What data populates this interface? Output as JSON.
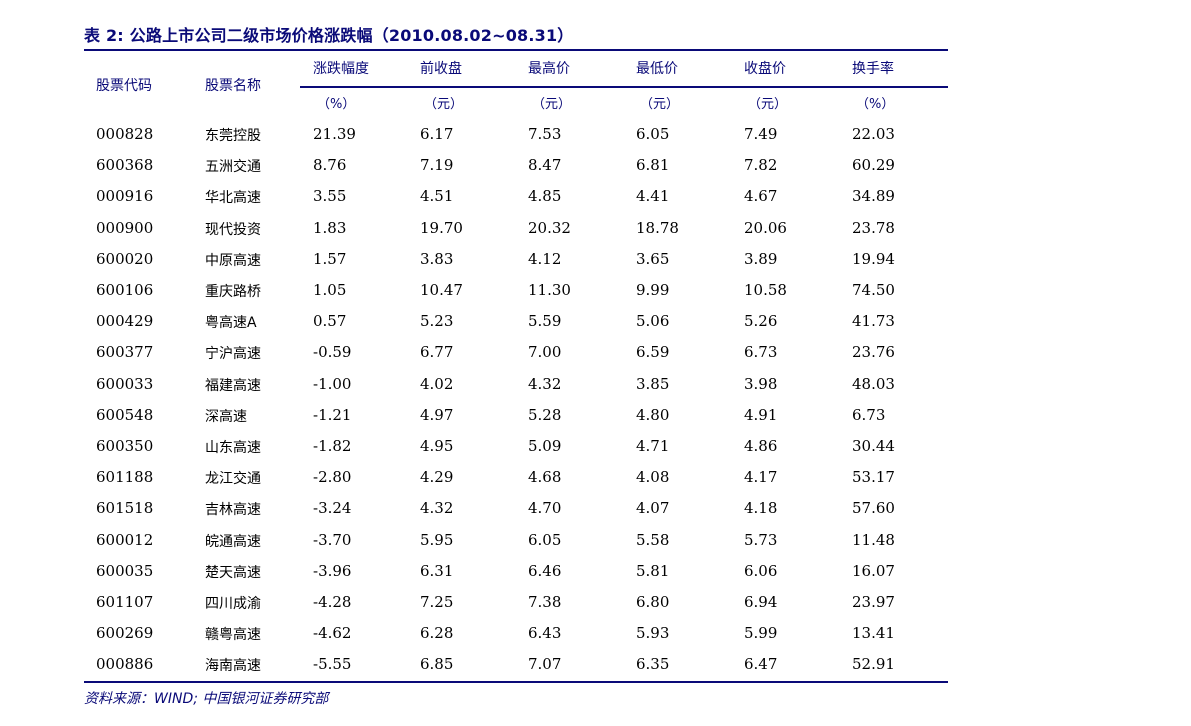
{
  "title": "表 2:  公路上市公司二级市场价格涨跌幅（2010.08.02~08.31）",
  "columns": [
    {
      "header": "股票代码",
      "unit": ""
    },
    {
      "header": "股票名称",
      "unit": ""
    },
    {
      "header": "涨跌幅度",
      "unit": "（%）"
    },
    {
      "header": "前收盘",
      "unit": "（元）"
    },
    {
      "header": "最高价",
      "unit": "（元）"
    },
    {
      "header": "最低价",
      "unit": "（元）"
    },
    {
      "header": "收盘价",
      "unit": "（元）"
    },
    {
      "header": "换手率",
      "unit": "（%）"
    }
  ],
  "rows": [
    [
      "000828",
      "东莞控股",
      "21.39",
      "6.17",
      "7.53",
      "6.05",
      "7.49",
      "22.03"
    ],
    [
      "600368",
      "五洲交通",
      "8.76",
      "7.19",
      "8.47",
      "6.81",
      "7.82",
      "60.29"
    ],
    [
      "000916",
      "华北高速",
      "3.55",
      "4.51",
      "4.85",
      "4.41",
      "4.67",
      "34.89"
    ],
    [
      "000900",
      "现代投资",
      "1.83",
      "19.70",
      "20.32",
      "18.78",
      "20.06",
      "23.78"
    ],
    [
      "600020",
      "中原高速",
      "1.57",
      "3.83",
      "4.12",
      "3.65",
      "3.89",
      "19.94"
    ],
    [
      "600106",
      "重庆路桥",
      "1.05",
      "10.47",
      "11.30",
      "9.99",
      "10.58",
      "74.50"
    ],
    [
      "000429",
      "粤高速A",
      "0.57",
      "5.23",
      "5.59",
      "5.06",
      "5.26",
      "41.73"
    ],
    [
      "600377",
      "宁沪高速",
      "-0.59",
      "6.77",
      "7.00",
      "6.59",
      "6.73",
      "23.76"
    ],
    [
      "600033",
      "福建高速",
      "-1.00",
      "4.02",
      "4.32",
      "3.85",
      "3.98",
      "48.03"
    ],
    [
      "600548",
      "深高速",
      "-1.21",
      "4.97",
      "5.28",
      "4.80",
      "4.91",
      "6.73"
    ],
    [
      "600350",
      "山东高速",
      "-1.82",
      "4.95",
      "5.09",
      "4.71",
      "4.86",
      "30.44"
    ],
    [
      "601188",
      "龙江交通",
      "-2.80",
      "4.29",
      "4.68",
      "4.08",
      "4.17",
      "53.17"
    ],
    [
      "601518",
      "吉林高速",
      "-3.24",
      "4.32",
      "4.70",
      "4.07",
      "4.18",
      "57.60"
    ],
    [
      "600012",
      "皖通高速",
      "-3.70",
      "5.95",
      "6.05",
      "5.58",
      "5.73",
      "11.48"
    ],
    [
      "600035",
      "楚天高速",
      "-3.96",
      "6.31",
      "6.46",
      "5.81",
      "6.06",
      "16.07"
    ],
    [
      "601107",
      "四川成渝",
      "-4.28",
      "7.25",
      "7.38",
      "6.80",
      "6.94",
      "23.97"
    ],
    [
      "600269",
      "赣粤高速",
      "-4.62",
      "6.28",
      "6.43",
      "5.93",
      "5.99",
      "13.41"
    ],
    [
      "000886",
      "海南高速",
      "-5.55",
      "6.85",
      "7.07",
      "6.35",
      "6.47",
      "52.91"
    ]
  ],
  "source": "资料来源：WIND;  中国银河证券研究部",
  "colors": {
    "accent": "#0a0a78",
    "text": "#000000"
  }
}
